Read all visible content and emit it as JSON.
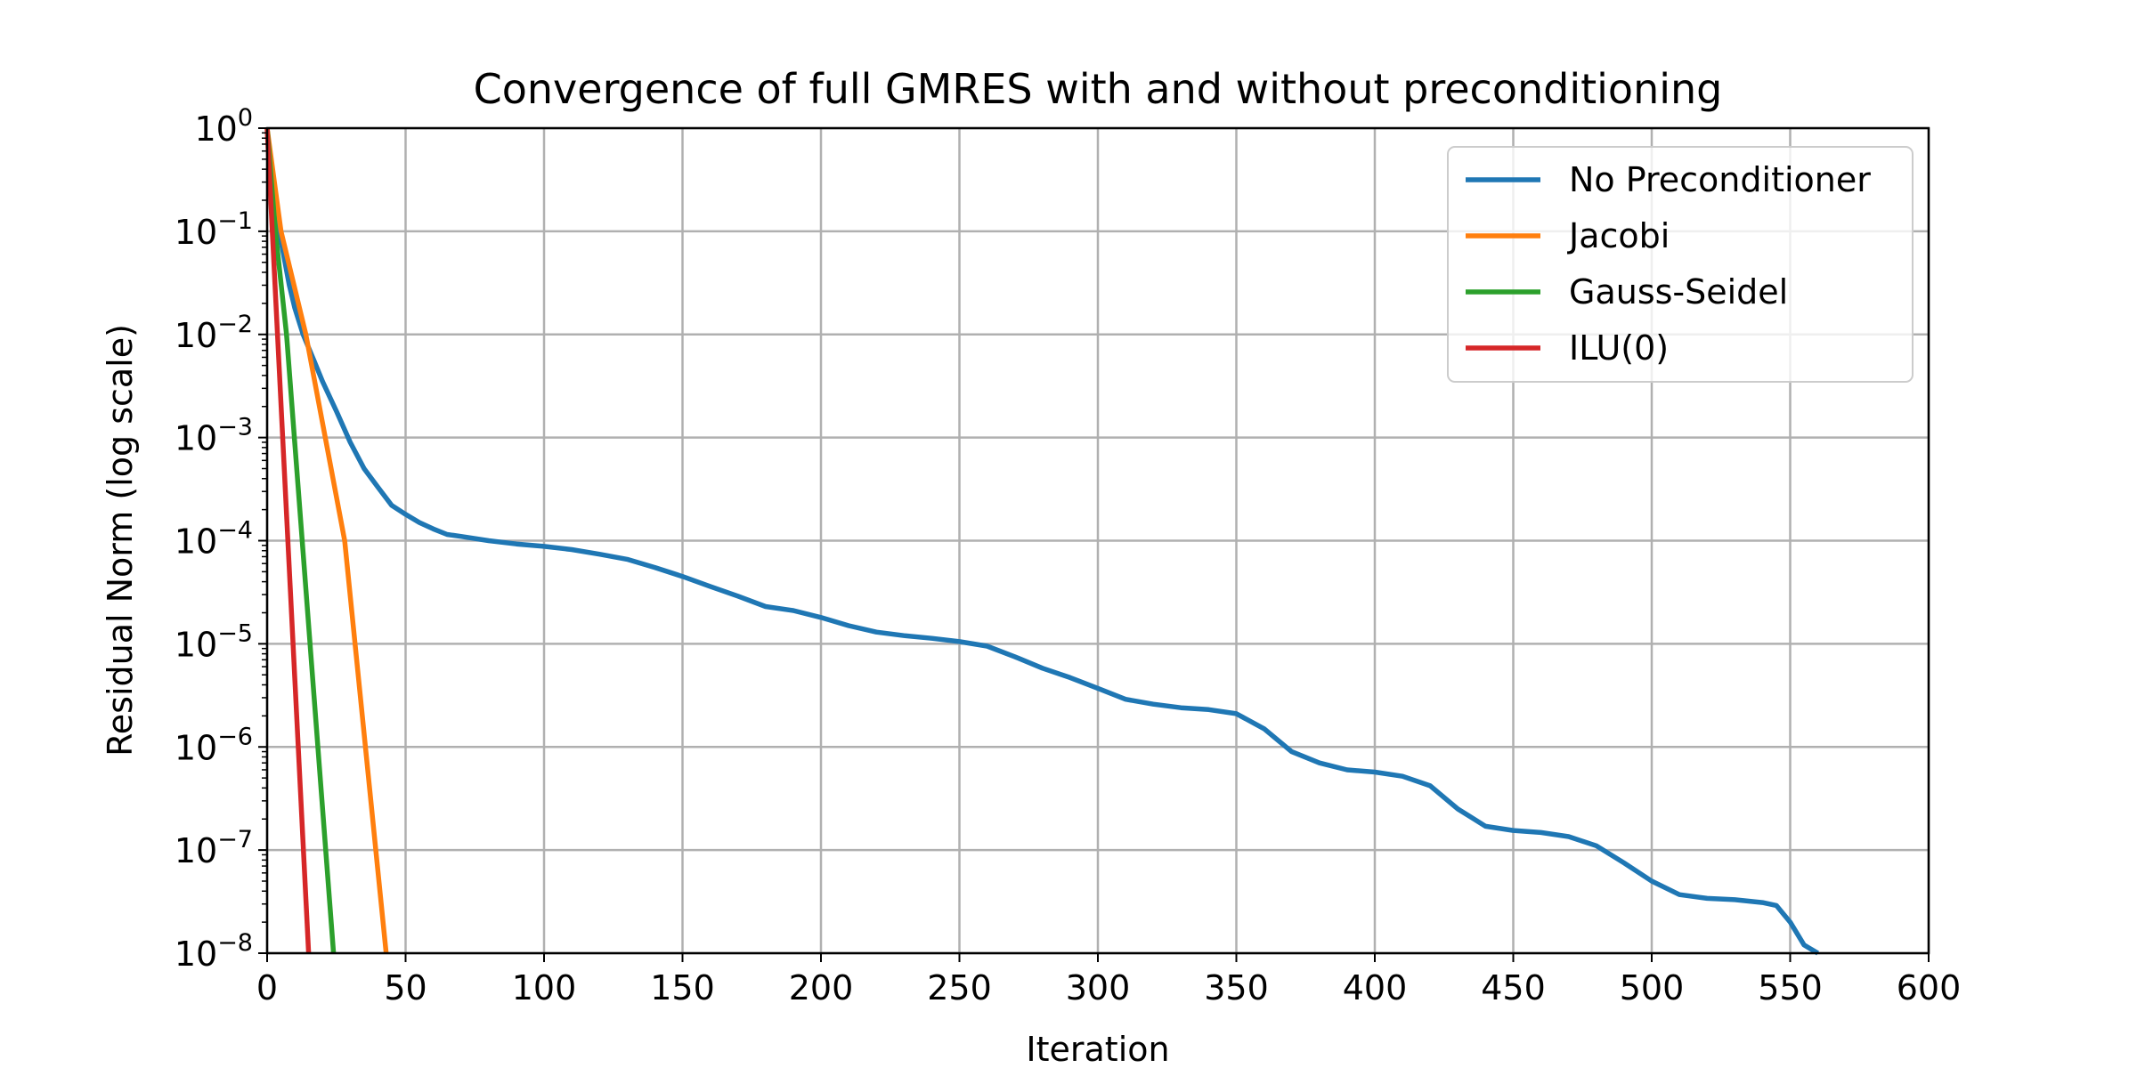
{
  "chart_data": {
    "type": "line",
    "title": "Convergence of full GMRES with and without preconditioning",
    "xlabel": "Iteration",
    "ylabel": "Residual Norm (log scale)",
    "xscale": "linear",
    "yscale": "log",
    "xlim": [
      0,
      600
    ],
    "ylim": [
      1e-08,
      1
    ],
    "grid": true,
    "legend_position": "top-right",
    "x_ticks": [
      {
        "value": 0,
        "label": "0"
      },
      {
        "value": 50,
        "label": "50"
      },
      {
        "value": 100,
        "label": "100"
      },
      {
        "value": 150,
        "label": "150"
      },
      {
        "value": 200,
        "label": "200"
      },
      {
        "value": 250,
        "label": "250"
      },
      {
        "value": 300,
        "label": "300"
      },
      {
        "value": 350,
        "label": "350"
      },
      {
        "value": 400,
        "label": "400"
      },
      {
        "value": 450,
        "label": "450"
      },
      {
        "value": 500,
        "label": "500"
      },
      {
        "value": 550,
        "label": "550"
      },
      {
        "value": 600,
        "label": "600"
      }
    ],
    "y_ticks": [
      {
        "value": 1,
        "base": "10",
        "exp": "0"
      },
      {
        "value": 0.1,
        "base": "10",
        "exp": "−1"
      },
      {
        "value": 0.01,
        "base": "10",
        "exp": "−2"
      },
      {
        "value": 0.001,
        "base": "10",
        "exp": "−3"
      },
      {
        "value": 0.0001,
        "base": "10",
        "exp": "−4"
      },
      {
        "value": 1e-05,
        "base": "10",
        "exp": "−5"
      },
      {
        "value": 1e-06,
        "base": "10",
        "exp": "−6"
      },
      {
        "value": 1e-07,
        "base": "10",
        "exp": "−7"
      },
      {
        "value": 1e-08,
        "base": "10",
        "exp": "−8"
      }
    ],
    "series": [
      {
        "name": "No Preconditioner",
        "color": "#1f77b4",
        "points": [
          [
            0,
            1
          ],
          [
            2,
            0.3
          ],
          [
            5,
            0.08
          ],
          [
            8,
            0.03
          ],
          [
            10,
            0.018
          ],
          [
            13,
            0.01
          ],
          [
            17,
            0.0055
          ],
          [
            20,
            0.0035
          ],
          [
            25,
            0.0018
          ],
          [
            30,
            0.0009
          ],
          [
            35,
            0.0005
          ],
          [
            40,
            0.00033
          ],
          [
            45,
            0.00022
          ],
          [
            50,
            0.00018
          ],
          [
            55,
            0.00015
          ],
          [
            60,
            0.00013
          ],
          [
            65,
            0.000115
          ],
          [
            70,
            0.00011
          ],
          [
            80,
            0.0001
          ],
          [
            90,
            9.3e-05
          ],
          [
            100,
            8.8e-05
          ],
          [
            110,
            8.2e-05
          ],
          [
            120,
            7.4e-05
          ],
          [
            130,
            6.6e-05
          ],
          [
            140,
            5.5e-05
          ],
          [
            150,
            4.5e-05
          ],
          [
            160,
            3.6e-05
          ],
          [
            170,
            2.9e-05
          ],
          [
            180,
            2.3e-05
          ],
          [
            190,
            2.1e-05
          ],
          [
            200,
            1.8e-05
          ],
          [
            210,
            1.5e-05
          ],
          [
            220,
            1.3e-05
          ],
          [
            230,
            1.2e-05
          ],
          [
            240,
            1.13e-05
          ],
          [
            250,
            1.05e-05
          ],
          [
            260,
            9.5e-06
          ],
          [
            270,
            7.5e-06
          ],
          [
            280,
            5.8e-06
          ],
          [
            290,
            4.7e-06
          ],
          [
            300,
            3.7e-06
          ],
          [
            310,
            2.9e-06
          ],
          [
            320,
            2.6e-06
          ],
          [
            330,
            2.4e-06
          ],
          [
            340,
            2.3e-06
          ],
          [
            350,
            2.1e-06
          ],
          [
            360,
            1.5e-06
          ],
          [
            370,
            9e-07
          ],
          [
            380,
            7e-07
          ],
          [
            390,
            6e-07
          ],
          [
            400,
            5.7e-07
          ],
          [
            410,
            5.2e-07
          ],
          [
            420,
            4.2e-07
          ],
          [
            430,
            2.5e-07
          ],
          [
            440,
            1.7e-07
          ],
          [
            450,
            1.55e-07
          ],
          [
            460,
            1.48e-07
          ],
          [
            470,
            1.35e-07
          ],
          [
            480,
            1.1e-07
          ],
          [
            490,
            7.5e-08
          ],
          [
            500,
            5e-08
          ],
          [
            510,
            3.7e-08
          ],
          [
            520,
            3.4e-08
          ],
          [
            530,
            3.3e-08
          ],
          [
            540,
            3.1e-08
          ],
          [
            545,
            2.9e-08
          ],
          [
            550,
            2e-08
          ],
          [
            555,
            1.2e-08
          ],
          [
            560,
            1e-08
          ]
        ]
      },
      {
        "name": "Jacobi",
        "color": "#ff7f0e",
        "points": [
          [
            0,
            1
          ],
          [
            5,
            0.1
          ],
          [
            14,
            0.01
          ],
          [
            21,
            0.001
          ],
          [
            28,
            0.0001
          ],
          [
            43,
            1e-08
          ]
        ]
      },
      {
        "name": "Gauss-Seidel",
        "color": "#2ca02c",
        "points": [
          [
            0,
            1
          ],
          [
            3,
            0.1
          ],
          [
            7,
            0.01
          ],
          [
            24,
            1e-08
          ]
        ]
      },
      {
        "name": "ILU(0)",
        "color": "#d62728",
        "points": [
          [
            0,
            1
          ],
          [
            15,
            1e-08
          ]
        ]
      }
    ]
  }
}
